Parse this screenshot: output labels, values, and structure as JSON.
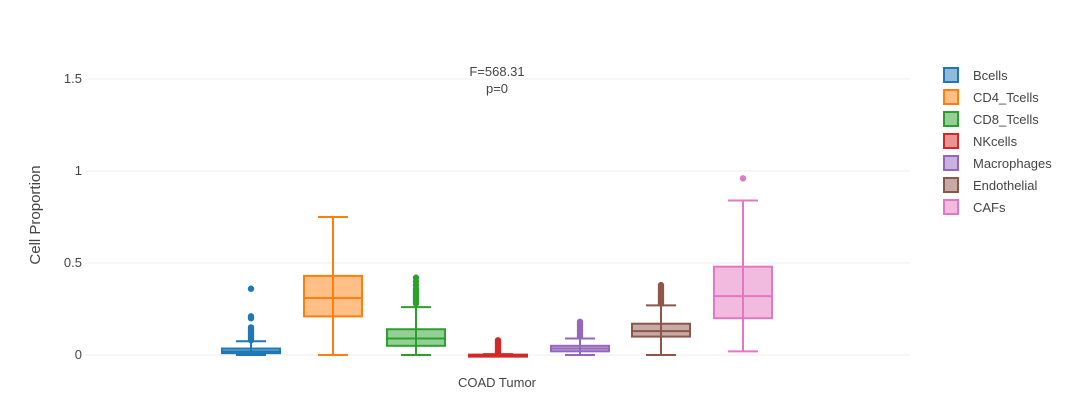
{
  "chart_data": {
    "type": "box",
    "title": "",
    "annotation": [
      "F=568.31",
      "p=0"
    ],
    "xlabel": "COAD Tumor",
    "ylabel": "Cell Proportion",
    "ylim": [
      -0.02,
      1.5
    ],
    "yticks": [
      0,
      0.5,
      1,
      1.5
    ],
    "ytick_labels": [
      "0",
      "0.5",
      "1",
      "1.5"
    ],
    "grid": true,
    "legend_position": "right",
    "series": [
      {
        "name": "Bcells",
        "color": "#1f77b4",
        "min": 0.0,
        "q1": 0.01,
        "median": 0.02,
        "q3": 0.035,
        "max": 0.075,
        "outliers": [
          0.08,
          0.09,
          0.1,
          0.11,
          0.12,
          0.13,
          0.14,
          0.15,
          0.2,
          0.21,
          0.36
        ]
      },
      {
        "name": "CD4_Tcells",
        "color": "#ff7f0e",
        "min": 0.0,
        "q1": 0.21,
        "median": 0.31,
        "q3": 0.43,
        "max": 0.75,
        "outliers": []
      },
      {
        "name": "CD8_Tcells",
        "color": "#2ca02c",
        "min": 0.0,
        "q1": 0.05,
        "median": 0.09,
        "q3": 0.14,
        "max": 0.26,
        "outliers": [
          0.28,
          0.29,
          0.3,
          0.31,
          0.32,
          0.33,
          0.34,
          0.35,
          0.36,
          0.38,
          0.4,
          0.42
        ]
      },
      {
        "name": "NKcells",
        "color": "#d62728",
        "min": 0.0,
        "q1": 0.0,
        "median": 0.0,
        "q3": 0.002,
        "max": 0.005,
        "outliers": [
          0.01,
          0.02,
          0.03,
          0.04,
          0.05,
          0.06,
          0.07,
          0.08
        ]
      },
      {
        "name": "Macrophages",
        "color": "#9467bd",
        "min": 0.0,
        "q1": 0.02,
        "median": 0.035,
        "q3": 0.05,
        "max": 0.09,
        "outliers": [
          0.1,
          0.11,
          0.12,
          0.13,
          0.14,
          0.15,
          0.16,
          0.17,
          0.18
        ]
      },
      {
        "name": "Endothelial",
        "color": "#8c564b",
        "min": 0.0,
        "q1": 0.1,
        "median": 0.13,
        "q3": 0.17,
        "max": 0.27,
        "outliers": [
          0.28,
          0.29,
          0.3,
          0.31,
          0.32,
          0.33,
          0.34,
          0.35,
          0.36,
          0.37,
          0.38
        ]
      },
      {
        "name": "CAFs",
        "color": "#e377c2",
        "min": 0.02,
        "q1": 0.2,
        "median": 0.32,
        "q3": 0.48,
        "max": 0.84,
        "outliers": [
          0.96
        ]
      }
    ]
  }
}
